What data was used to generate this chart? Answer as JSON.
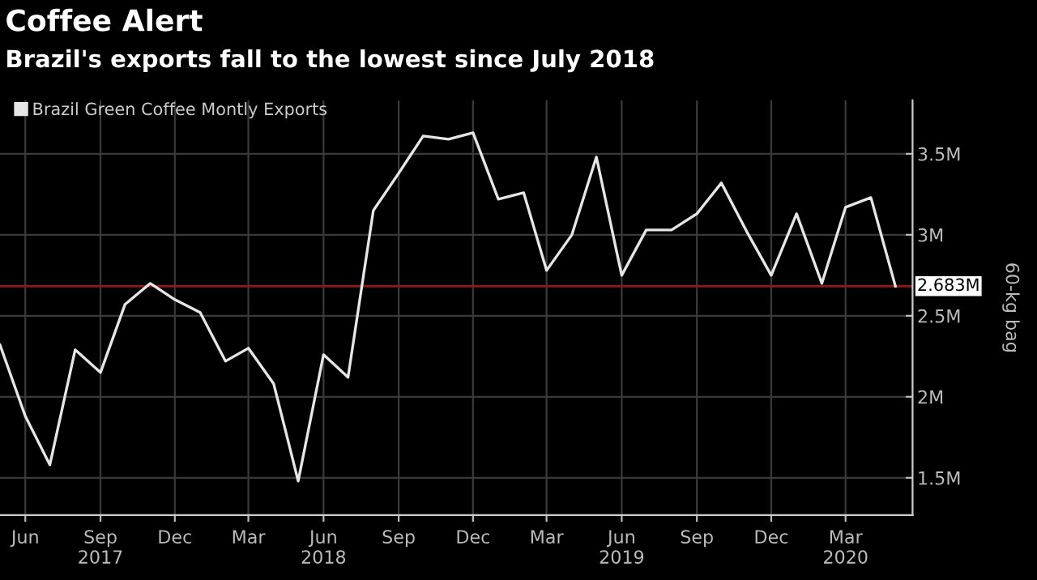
{
  "chart_data": {
    "type": "line",
    "title": "Coffee Alert",
    "subtitle": "Brazil's exports fall to the lowest since July 2018",
    "ylabel": "60-kg bag",
    "x": [
      "2017-05",
      "2017-06",
      "2017-07",
      "2017-08",
      "2017-09",
      "2017-10",
      "2017-11",
      "2017-12",
      "2018-01",
      "2018-02",
      "2018-03",
      "2018-04",
      "2018-05",
      "2018-06",
      "2018-07",
      "2018-08",
      "2018-09",
      "2018-10",
      "2018-11",
      "2018-12",
      "2019-01",
      "2019-02",
      "2019-03",
      "2019-04",
      "2019-05",
      "2019-06",
      "2019-07",
      "2019-08",
      "2019-09",
      "2019-10",
      "2019-11",
      "2019-12",
      "2020-01",
      "2020-02",
      "2020-03",
      "2020-04",
      "2020-05"
    ],
    "series": [
      {
        "name": "Brazil Green Coffee Montly Exports",
        "color": "#e6e6e6",
        "values": [
          2.32,
          1.88,
          1.58,
          2.29,
          2.15,
          2.57,
          2.7,
          2.6,
          2.52,
          2.22,
          2.3,
          2.08,
          1.48,
          2.26,
          2.12,
          3.15,
          3.38,
          3.61,
          3.59,
          3.63,
          3.22,
          3.26,
          2.78,
          3.0,
          3.48,
          2.75,
          3.03,
          3.03,
          3.13,
          3.32,
          3.02,
          2.75,
          3.13,
          2.7,
          3.17,
          3.23,
          2.683
        ]
      }
    ],
    "xlim": [
      "2017-05-01",
      "2020-05-22"
    ],
    "xticks": [
      {
        "value": "2017-06",
        "label": "Jun"
      },
      {
        "value": "2017-09",
        "label": "Sep\n2017"
      },
      {
        "value": "2017-12",
        "label": "Dec"
      },
      {
        "value": "2018-03",
        "label": "Mar"
      },
      {
        "value": "2018-06",
        "label": "Jun\n2018"
      },
      {
        "value": "2018-09",
        "label": "Sep"
      },
      {
        "value": "2018-12",
        "label": "Dec"
      },
      {
        "value": "2019-03",
        "label": "Mar"
      },
      {
        "value": "2019-06",
        "label": "Jun\n2019"
      },
      {
        "value": "2019-09",
        "label": "Sep"
      },
      {
        "value": "2019-12",
        "label": "Dec"
      },
      {
        "value": "2020-03",
        "label": "Mar\n2020"
      }
    ],
    "ylim": [
      1.27,
      3.83
    ],
    "yticks": [
      {
        "value": 1.5,
        "label": "1.5M"
      },
      {
        "value": 2,
        "label": "2M"
      },
      {
        "value": 2.5,
        "label": "2.5M"
      },
      {
        "value": 3,
        "label": "3M"
      },
      {
        "value": 3.5,
        "label": "3.5M"
      }
    ],
    "ref_lines": [
      {
        "axis": "y",
        "value": 2.683,
        "label": "2.683M",
        "color": "#8b1a1a"
      }
    ],
    "grid": true,
    "legend": "top left",
    "marker": "none",
    "line_style": "solid"
  }
}
